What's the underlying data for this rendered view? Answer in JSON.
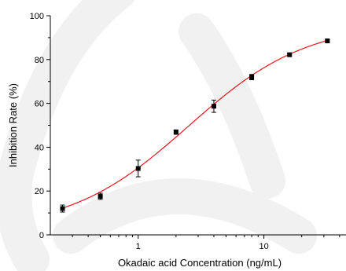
{
  "chart_data": {
    "type": "scatter",
    "xlabel": "Okadaic acid Concentration (ng/mL)",
    "ylabel": "Inhibition Rate (%)",
    "xscale": "log",
    "xlim": [
      0.2,
      45
    ],
    "ylim": [
      0,
      100
    ],
    "yticks": [
      0,
      20,
      40,
      60,
      80,
      100
    ],
    "xtick_labels": [
      {
        "value": 1,
        "label": "1"
      },
      {
        "value": 10,
        "label": "10"
      }
    ],
    "grid": false,
    "legend": "none",
    "series": [
      {
        "kind": "points_with_error",
        "x": [
          0.25,
          0.5,
          1,
          2,
          4,
          8,
          16,
          32
        ],
        "y": [
          12.0,
          17.6,
          30.3,
          46.9,
          58.7,
          72.0,
          82.2,
          88.5
        ],
        "yerr": [
          1.6,
          1.4,
          3.8,
          1.0,
          2.8,
          1.2,
          0.6,
          0.6
        ],
        "color": "#000000"
      },
      {
        "kind": "fit_curve",
        "model": "four-parameter logistic",
        "params": {
          "bottom": 2,
          "top": 97,
          "ec50": 2.5,
          "hill": 0.92
        },
        "color": "#e8151b"
      }
    ]
  }
}
